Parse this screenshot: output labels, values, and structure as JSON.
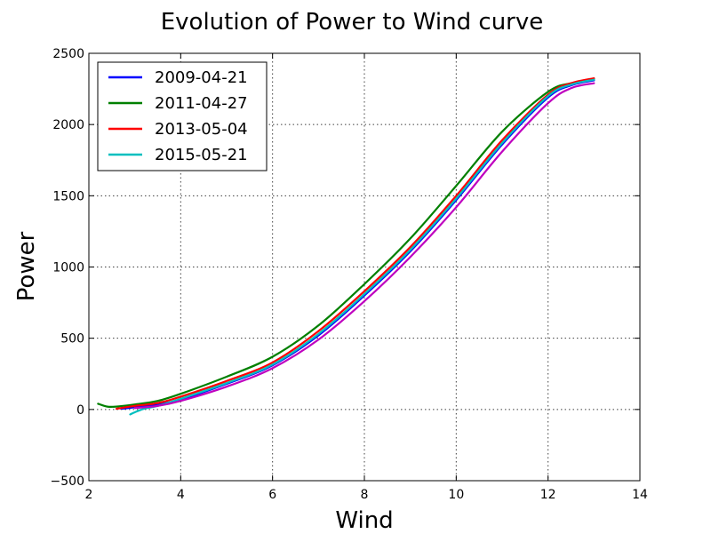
{
  "chart_data": {
    "type": "line",
    "title": "Evolution of Power to Wind curve",
    "xlabel": "Wind",
    "ylabel": "Power",
    "xlim": [
      2,
      14
    ],
    "ylim": [
      -500,
      2500
    ],
    "xticks": [
      2,
      4,
      6,
      8,
      10,
      12,
      14
    ],
    "yticks": [
      -500,
      0,
      500,
      1000,
      1500,
      2000,
      2500
    ],
    "xtick_labels": [
      "2",
      "4",
      "6",
      "8",
      "10",
      "12",
      "14"
    ],
    "ytick_labels": [
      "−500",
      "0",
      "500",
      "1000",
      "1500",
      "2000",
      "2500"
    ],
    "grid": true,
    "legend_position": "upper-left",
    "series": [
      {
        "name": "2009-04-21",
        "color": "#0000ff",
        "x": [
          2.7,
          3.0,
          3.5,
          4.0,
          5.0,
          6.0,
          7.0,
          8.0,
          9.0,
          10.0,
          11.0,
          12.0,
          12.5,
          13.0
        ],
        "y": [
          5,
          15,
          35,
          70,
          180,
          310,
          520,
          800,
          1110,
          1470,
          1860,
          2190,
          2275,
          2310
        ]
      },
      {
        "name": "2011-04-27",
        "color": "#008000",
        "x": [
          2.2,
          2.4,
          2.6,
          3.0,
          3.5,
          4.0,
          5.0,
          6.0,
          7.0,
          8.0,
          9.0,
          10.0,
          11.0,
          12.0,
          12.5,
          13.0
        ],
        "y": [
          40,
          20,
          20,
          35,
          60,
          110,
          230,
          370,
          590,
          880,
          1200,
          1570,
          1950,
          2230,
          2290,
          2320
        ]
      },
      {
        "name": "2013-05-04",
        "color": "#ff0000",
        "x": [
          2.6,
          3.0,
          3.5,
          4.0,
          5.0,
          6.0,
          7.0,
          8.0,
          9.0,
          10.0,
          11.0,
          12.0,
          12.5,
          13.0
        ],
        "y": [
          5,
          25,
          45,
          90,
          200,
          330,
          550,
          830,
          1140,
          1500,
          1890,
          2210,
          2290,
          2325
        ]
      },
      {
        "name": "2015-05-21",
        "color": "#00bfbf",
        "x": [
          2.9,
          3.0,
          3.2,
          3.5,
          4.0,
          5.0,
          6.0,
          7.0,
          8.0,
          9.0,
          10.0,
          11.0,
          12.0,
          12.5,
          13.0
        ],
        "y": [
          -35,
          -20,
          5,
          25,
          75,
          185,
          315,
          530,
          810,
          1120,
          1480,
          1870,
          2200,
          2280,
          2315
        ]
      },
      {
        "color": "#bf00bf",
        "x": [
          3.0,
          3.5,
          4.0,
          5.0,
          6.0,
          7.0,
          8.0,
          9.0,
          10.0,
          11.0,
          12.0,
          12.5,
          13.0
        ],
        "y": [
          10,
          25,
          60,
          160,
          290,
          490,
          760,
          1070,
          1420,
          1810,
          2150,
          2255,
          2290
        ]
      }
    ]
  }
}
